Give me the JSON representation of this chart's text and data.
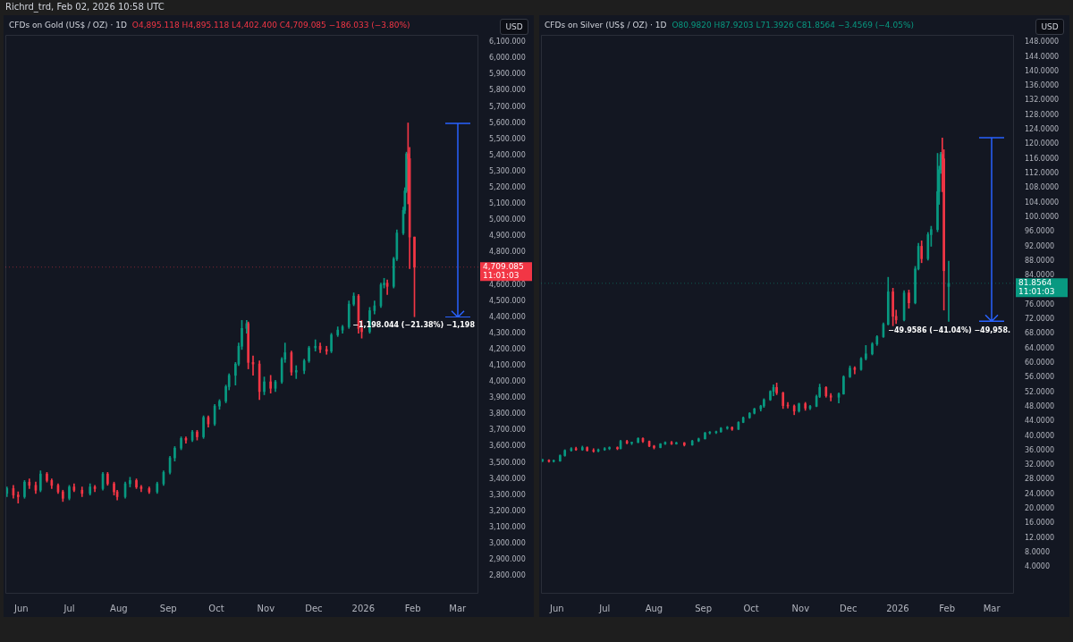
{
  "chart_data": [
    {
      "type": "candlestick",
      "title": "CFDs on Gold (US$ / OZ) · 1D",
      "subtitle": "O4,895.118 H4,895.118 L4,402.400 C4,709.085 −186.033 (−3.80%)",
      "grid": false,
      "x": [
        "2025-05-23",
        "2025-05-27",
        "2025-05-30",
        "2025-06-03",
        "2025-06-06",
        "2025-06-10",
        "2025-06-13",
        "2025-06-17",
        "2025-06-20",
        "2025-06-24",
        "2025-06-27",
        "2025-07-01",
        "2025-07-04",
        "2025-07-09",
        "2025-07-14",
        "2025-07-17",
        "2025-07-22",
        "2025-07-25",
        "2025-07-29",
        "2025-07-31",
        "2025-08-05",
        "2025-08-08",
        "2025-08-12",
        "2025-08-15",
        "2025-08-20",
        "2025-08-25",
        "2025-08-29",
        "2025-09-02",
        "2025-09-05",
        "2025-09-09",
        "2025-09-12",
        "2025-09-16",
        "2025-09-19",
        "2025-09-23",
        "2025-09-26",
        "2025-09-30",
        "2025-10-03",
        "2025-10-07",
        "2025-10-09",
        "2025-10-13",
        "2025-10-15",
        "2025-10-17",
        "2025-10-20",
        "2025-10-21",
        "2025-10-24",
        "2025-10-28",
        "2025-10-31",
        "2025-11-04",
        "2025-11-07",
        "2025-11-11",
        "2025-11-13",
        "2025-11-17",
        "2025-11-20",
        "2025-11-25",
        "2025-11-28",
        "2025-12-02",
        "2025-12-05",
        "2025-12-09",
        "2025-12-12",
        "2025-12-16",
        "2025-12-19",
        "2025-12-23",
        "2025-12-26",
        "2025-12-29",
        "2025-12-31",
        "2026-01-05",
        "2026-01-08",
        "2026-01-12",
        "2026-01-14",
        "2026-01-16",
        "2026-01-20",
        "2026-01-22",
        "2026-01-26",
        "2026-01-27",
        "2026-01-28",
        "2026-01-29",
        "2026-01-30",
        "2026-02-02"
      ],
      "ohlc": [
        [
          3310,
          3350,
          3290,
          3340
        ],
        [
          3340,
          3360,
          3280,
          3300
        ],
        [
          3300,
          3320,
          3250,
          3290
        ],
        [
          3290,
          3390,
          3280,
          3380
        ],
        [
          3380,
          3400,
          3340,
          3360
        ],
        [
          3360,
          3380,
          3310,
          3330
        ],
        [
          3330,
          3450,
          3320,
          3430
        ],
        [
          3430,
          3440,
          3380,
          3390
        ],
        [
          3390,
          3400,
          3340,
          3360
        ],
        [
          3360,
          3370,
          3310,
          3320
        ],
        [
          3320,
          3330,
          3260,
          3280
        ],
        [
          3280,
          3360,
          3270,
          3350
        ],
        [
          3350,
          3370,
          3320,
          3330
        ],
        [
          3330,
          3350,
          3290,
          3310
        ],
        [
          3310,
          3370,
          3300,
          3350
        ],
        [
          3350,
          3360,
          3320,
          3340
        ],
        [
          3340,
          3440,
          3330,
          3430
        ],
        [
          3430,
          3440,
          3360,
          3370
        ],
        [
          3370,
          3380,
          3300,
          3320
        ],
        [
          3320,
          3330,
          3270,
          3290
        ],
        [
          3290,
          3380,
          3280,
          3370
        ],
        [
          3370,
          3410,
          3350,
          3390
        ],
        [
          3390,
          3400,
          3340,
          3350
        ],
        [
          3350,
          3360,
          3320,
          3340
        ],
        [
          3340,
          3350,
          3310,
          3320
        ],
        [
          3320,
          3380,
          3310,
          3370
        ],
        [
          3370,
          3450,
          3360,
          3440
        ],
        [
          3440,
          3540,
          3430,
          3530
        ],
        [
          3530,
          3600,
          3510,
          3590
        ],
        [
          3590,
          3660,
          3580,
          3650
        ],
        [
          3650,
          3660,
          3620,
          3640
        ],
        [
          3640,
          3700,
          3630,
          3690
        ],
        [
          3690,
          3700,
          3640,
          3660
        ],
        [
          3660,
          3790,
          3650,
          3780
        ],
        [
          3780,
          3790,
          3720,
          3740
        ],
        [
          3740,
          3860,
          3730,
          3850
        ],
        [
          3850,
          3890,
          3830,
          3880
        ],
        [
          3880,
          3980,
          3870,
          3970
        ],
        [
          3970,
          4050,
          3950,
          4040
        ],
        [
          4040,
          4120,
          3980,
          4110
        ],
        [
          4110,
          4240,
          4100,
          4220
        ],
        [
          4220,
          4380,
          4200,
          4330
        ],
        [
          4330,
          4380,
          4300,
          4360
        ],
        [
          4360,
          4370,
          4080,
          4120
        ],
        [
          4120,
          4160,
          4040,
          4110
        ],
        [
          4110,
          4130,
          3890,
          3940
        ],
        [
          3940,
          4030,
          3920,
          4000
        ],
        [
          4000,
          4040,
          3930,
          3960
        ],
        [
          3960,
          4010,
          3940,
          4000
        ],
        [
          4000,
          4150,
          3990,
          4140
        ],
        [
          4140,
          4240,
          4120,
          4180
        ],
        [
          4180,
          4190,
          4040,
          4060
        ],
        [
          4060,
          4100,
          4020,
          4070
        ],
        [
          4070,
          4140,
          4050,
          4130
        ],
        [
          4130,
          4220,
          4120,
          4210
        ],
        [
          4210,
          4260,
          4190,
          4220
        ],
        [
          4220,
          4240,
          4180,
          4200
        ],
        [
          4200,
          4220,
          4170,
          4190
        ],
        [
          4190,
          4300,
          4180,
          4290
        ],
        [
          4290,
          4340,
          4280,
          4320
        ],
        [
          4320,
          4350,
          4300,
          4340
        ],
        [
          4340,
          4500,
          4330,
          4480
        ],
        [
          4480,
          4550,
          4470,
          4530
        ],
        [
          4530,
          4540,
          4300,
          4330
        ],
        [
          4330,
          4380,
          4270,
          4310
        ],
        [
          4310,
          4460,
          4300,
          4440
        ],
        [
          4440,
          4500,
          4420,
          4470
        ],
        [
          4470,
          4610,
          4460,
          4600
        ],
        [
          4600,
          4640,
          4580,
          4610
        ],
        [
          4610,
          4630,
          4540,
          4590
        ],
        [
          4590,
          4770,
          4580,
          4760
        ],
        [
          4760,
          4940,
          4750,
          4920
        ],
        [
          4920,
          5080,
          4910,
          5060
        ],
        [
          5060,
          5200,
          5040,
          5180
        ],
        [
          5180,
          5420,
          5170,
          5410
        ],
        [
          5410,
          5600.444,
          5100,
          5380
        ],
        [
          5380,
          5450,
          4700,
          4895.118
        ],
        [
          4895.118,
          4895.118,
          4402.4,
          4709.085
        ]
      ],
      "colors": [
        "#089981",
        "#f23645",
        "#f23645",
        "#089981",
        "#f23645",
        "#f23645",
        "#089981",
        "#f23645",
        "#f23645",
        "#f23645",
        "#f23645",
        "#089981",
        "#f23645",
        "#f23645",
        "#089981",
        "#f23645",
        "#089981",
        "#f23645",
        "#f23645",
        "#f23645",
        "#089981",
        "#089981",
        "#f23645",
        "#f23645",
        "#f23645",
        "#089981",
        "#089981",
        "#089981",
        "#089981",
        "#089981",
        "#f23645",
        "#089981",
        "#f23645",
        "#089981",
        "#f23645",
        "#089981",
        "#089981",
        "#089981",
        "#089981",
        "#089981",
        "#089981",
        "#089981",
        "#089981",
        "#f23645",
        "#f23645",
        "#f23645",
        "#089981",
        "#f23645",
        "#089981",
        "#089981",
        "#089981",
        "#f23645",
        "#089981",
        "#089981",
        "#089981",
        "#089981",
        "#f23645",
        "#f23645",
        "#089981",
        "#089981",
        "#089981",
        "#089981",
        "#089981",
        "#f23645",
        "#f23645",
        "#089981",
        "#089981",
        "#089981",
        "#089981",
        "#f23645",
        "#089981",
        "#089981",
        "#089981",
        "#089981",
        "#089981",
        "#f23645",
        "#f23645",
        "#f23645"
      ],
      "xlim": [
        "2025-05-22",
        "2026-03-14"
      ],
      "xticks": [
        {
          "value": "2025-06-01",
          "label": "Jun"
        },
        {
          "value": "2025-07-01",
          "label": "Jul"
        },
        {
          "value": "2025-08-01",
          "label": "Aug"
        },
        {
          "value": "2025-09-01",
          "label": "Sep"
        },
        {
          "value": "2025-10-01",
          "label": "Oct"
        },
        {
          "value": "2025-11-01",
          "label": "Nov"
        },
        {
          "value": "2025-12-01",
          "label": "Dec"
        },
        {
          "value": "2026-01-01",
          "label": "2026"
        },
        {
          "value": "2026-02-01",
          "label": "Feb"
        },
        {
          "value": "2026-03-01",
          "label": "Mar"
        }
      ],
      "ylim": [
        2690,
        6145
      ],
      "yticks": [
        {
          "value": 2800,
          "label": "2,800.000"
        },
        {
          "value": 2900,
          "label": "2,900.000"
        },
        {
          "value": 3000,
          "label": "3,000.000"
        },
        {
          "value": 3100,
          "label": "3,100.000"
        },
        {
          "value": 3200,
          "label": "3,200.000"
        },
        {
          "value": 3300,
          "label": "3,300.000"
        },
        {
          "value": 3400,
          "label": "3,400.000"
        },
        {
          "value": 3500,
          "label": "3,500.000"
        },
        {
          "value": 3600,
          "label": "3,600.000"
        },
        {
          "value": 3700,
          "label": "3,700.000"
        },
        {
          "value": 3800,
          "label": "3,800.000"
        },
        {
          "value": 3900,
          "label": "3,900.000"
        },
        {
          "value": 4000,
          "label": "4,000.000"
        },
        {
          "value": 4100,
          "label": "4,100.000"
        },
        {
          "value": 4200,
          "label": "4,200.000"
        },
        {
          "value": 4300,
          "label": "4,300.000"
        },
        {
          "value": 4400,
          "label": "4,400.000"
        },
        {
          "value": 4500,
          "label": "4,500.000"
        },
        {
          "value": 4600,
          "label": "4,600.000"
        },
        {
          "value": 4800,
          "label": "4,800.000"
        },
        {
          "value": 4900,
          "label": "4,900.000"
        },
        {
          "value": 5000,
          "label": "5,000.000"
        },
        {
          "value": 5100,
          "label": "5,100.000"
        },
        {
          "value": 5200,
          "label": "5,200.000"
        },
        {
          "value": 5300,
          "label": "5,300.000"
        },
        {
          "value": 5400,
          "label": "5,400.000"
        },
        {
          "value": 5500,
          "label": "5,500.000"
        },
        {
          "value": 5600,
          "label": "5,600.000"
        },
        {
          "value": 5700,
          "label": "5,700.000"
        },
        {
          "value": 5800,
          "label": "5,800.000"
        },
        {
          "value": 5900,
          "label": "5,900.000"
        },
        {
          "value": 6000,
          "label": "6,000.000"
        },
        {
          "value": 6100,
          "label": "6,100.000"
        }
      ],
      "ref_lines": [
        {
          "axis": "y",
          "value": 4709.085,
          "label": "4,709.085",
          "color": "#f23645"
        }
      ],
      "annotations": [
        "Richrd_trd, Feb 02, 2026 10:58 UTC",
        "USD",
        "11:01:03",
        "−1,198.044 (−21.38%) −1,198"
      ]
    },
    {
      "type": "candlestick",
      "title": "CFDs on Silver (US$ / OZ) · 1D",
      "subtitle": "O80.9820 H87.9203 L71.3926 C81.8564 −3.4569 (−4.05%)",
      "grid": false,
      "x": [
        "2025-05-23",
        "2025-05-27",
        "2025-05-30",
        "2025-06-03",
        "2025-06-06",
        "2025-06-10",
        "2025-06-13",
        "2025-06-17",
        "2025-06-20",
        "2025-06-24",
        "2025-06-27",
        "2025-07-01",
        "2025-07-04",
        "2025-07-09",
        "2025-07-11",
        "2025-07-15",
        "2025-07-18",
        "2025-07-22",
        "2025-07-25",
        "2025-07-29",
        "2025-08-01",
        "2025-08-05",
        "2025-08-08",
        "2025-08-12",
        "2025-08-15",
        "2025-08-20",
        "2025-08-25",
        "2025-08-29",
        "2025-09-02",
        "2025-09-05",
        "2025-09-09",
        "2025-09-12",
        "2025-09-16",
        "2025-09-19",
        "2025-09-23",
        "2025-09-26",
        "2025-09-30",
        "2025-10-03",
        "2025-10-07",
        "2025-10-09",
        "2025-10-13",
        "2025-10-15",
        "2025-10-17",
        "2025-10-21",
        "2025-10-24",
        "2025-10-28",
        "2025-10-31",
        "2025-11-04",
        "2025-11-07",
        "2025-11-11",
        "2025-11-13",
        "2025-11-17",
        "2025-11-20",
        "2025-11-25",
        "2025-11-28",
        "2025-12-02",
        "2025-12-05",
        "2025-12-09",
        "2025-12-12",
        "2025-12-16",
        "2025-12-19",
        "2025-12-23",
        "2025-12-26",
        "2025-12-29",
        "2025-12-31",
        "2026-01-05",
        "2026-01-08",
        "2026-01-12",
        "2026-01-14",
        "2026-01-16",
        "2026-01-20",
        "2026-01-22",
        "2026-01-26",
        "2026-01-27",
        "2026-01-28",
        "2026-01-29",
        "2026-01-30",
        "2026-02-02"
      ],
      "ohlc": [
        [
          33.2,
          33.6,
          32.9,
          33.3
        ],
        [
          33.3,
          33.5,
          32.8,
          33.0
        ],
        [
          33.0,
          33.4,
          32.8,
          33.1
        ],
        [
          33.1,
          34.8,
          33.0,
          34.6
        ],
        [
          34.6,
          36.2,
          34.4,
          36.0
        ],
        [
          36.0,
          36.8,
          35.8,
          36.5
        ],
        [
          36.5,
          36.9,
          36.0,
          36.2
        ],
        [
          36.2,
          37.2,
          36.0,
          36.8
        ],
        [
          36.8,
          37.0,
          35.8,
          36.0
        ],
        [
          36.0,
          36.5,
          35.5,
          35.8
        ],
        [
          35.8,
          36.4,
          35.6,
          36.2
        ],
        [
          36.2,
          36.8,
          36.0,
          36.5
        ],
        [
          36.5,
          37.0,
          36.2,
          36.8
        ],
        [
          36.8,
          37.0,
          36.2,
          36.5
        ],
        [
          36.5,
          38.8,
          36.4,
          38.5
        ],
        [
          38.5,
          38.8,
          37.8,
          38.0
        ],
        [
          38.0,
          38.3,
          37.6,
          38.2
        ],
        [
          38.2,
          39.5,
          38.1,
          39.3
        ],
        [
          39.3,
          39.5,
          38.2,
          38.5
        ],
        [
          38.5,
          38.6,
          37.0,
          37.2
        ],
        [
          37.2,
          37.4,
          36.4,
          36.8
        ],
        [
          36.8,
          37.9,
          36.7,
          37.8
        ],
        [
          37.8,
          38.4,
          37.6,
          38.2
        ],
        [
          38.2,
          38.5,
          37.6,
          37.8
        ],
        [
          37.8,
          38.3,
          37.7,
          38.1
        ],
        [
          38.1,
          38.2,
          37.2,
          37.5
        ],
        [
          37.5,
          38.8,
          37.4,
          38.6
        ],
        [
          38.6,
          39.4,
          38.4,
          39.2
        ],
        [
          39.2,
          41.0,
          39.1,
          40.8
        ],
        [
          40.8,
          41.2,
          40.5,
          40.9
        ],
        [
          40.9,
          41.3,
          40.6,
          41.1
        ],
        [
          41.1,
          42.3,
          41.0,
          42.1
        ],
        [
          42.1,
          42.6,
          41.8,
          42.3
        ],
        [
          42.3,
          42.5,
          41.5,
          41.8
        ],
        [
          41.8,
          43.9,
          41.7,
          43.7
        ],
        [
          43.7,
          45.2,
          43.6,
          45.0
        ],
        [
          45.0,
          46.4,
          44.8,
          46.2
        ],
        [
          46.2,
          47.6,
          46.0,
          47.4
        ],
        [
          47.4,
          48.4,
          46.8,
          48.2
        ],
        [
          48.2,
          50.2,
          47.8,
          49.9
        ],
        [
          49.9,
          52.4,
          49.7,
          52.2
        ],
        [
          52.2,
          54.0,
          51.0,
          53.3
        ],
        [
          53.3,
          54.5,
          51.3,
          51.8
        ],
        [
          51.8,
          52.0,
          47.5,
          48.3
        ],
        [
          48.3,
          49.2,
          47.6,
          48.2
        ],
        [
          48.2,
          48.5,
          45.8,
          46.8
        ],
        [
          46.8,
          49.0,
          46.5,
          48.8
        ],
        [
          48.8,
          49.2,
          47.0,
          47.6
        ],
        [
          47.6,
          48.4,
          47.2,
          48.1
        ],
        [
          48.1,
          51.2,
          48.0,
          50.8
        ],
        [
          50.8,
          54.2,
          50.5,
          53.3
        ],
        [
          53.3,
          53.5,
          50.6,
          51.0
        ],
        [
          51.0,
          51.6,
          49.6,
          50.6
        ],
        [
          50.6,
          51.8,
          49.0,
          51.5
        ],
        [
          51.5,
          56.5,
          51.4,
          56.2
        ],
        [
          56.2,
          59.2,
          56.0,
          58.6
        ],
        [
          58.6,
          59.0,
          57.0,
          58.2
        ],
        [
          58.2,
          61.5,
          58.0,
          61.2
        ],
        [
          61.2,
          64.8,
          60.8,
          62.5
        ],
        [
          62.5,
          65.6,
          62.2,
          65.2
        ],
        [
          65.2,
          67.5,
          64.8,
          67.2
        ],
        [
          67.2,
          71.0,
          67.0,
          70.6
        ],
        [
          70.6,
          83.5,
          70.4,
          79.5
        ],
        [
          79.5,
          80.5,
          70.2,
          72.8
        ],
        [
          72.8,
          74.5,
          70.8,
          71.8
        ],
        [
          71.8,
          79.8,
          71.5,
          79.2
        ],
        [
          79.2,
          80.0,
          75.0,
          76.5
        ],
        [
          76.5,
          86.5,
          76.2,
          85.8
        ],
        [
          85.8,
          92.8,
          85.5,
          92.0
        ],
        [
          92.0,
          93.5,
          87.5,
          88.6
        ],
        [
          88.6,
          95.8,
          88.2,
          95.2
        ],
        [
          95.2,
          97.5,
          92.0,
          96.6
        ],
        [
          96.6,
          117.5,
          96.0,
          107.0
        ],
        [
          107.0,
          114.0,
          103.5,
          113.0
        ],
        [
          113.0,
          117.8,
          112.0,
          117.2
        ],
        [
          117.2,
          121.73,
          107.0,
          116.0
        ],
        [
          116.0,
          118.5,
          74.5,
          85.3133
        ],
        [
          80.982,
          87.9203,
          71.3926,
          81.8564
        ]
      ],
      "colors": [
        "#089981",
        "#f23645",
        "#089981",
        "#089981",
        "#089981",
        "#089981",
        "#f23645",
        "#089981",
        "#f23645",
        "#f23645",
        "#089981",
        "#089981",
        "#089981",
        "#f23645",
        "#089981",
        "#f23645",
        "#089981",
        "#089981",
        "#f23645",
        "#f23645",
        "#f23645",
        "#089981",
        "#089981",
        "#f23645",
        "#089981",
        "#f23645",
        "#089981",
        "#089981",
        "#089981",
        "#089981",
        "#089981",
        "#089981",
        "#089981",
        "#f23645",
        "#089981",
        "#089981",
        "#089981",
        "#089981",
        "#089981",
        "#089981",
        "#089981",
        "#089981",
        "#f23645",
        "#f23645",
        "#f23645",
        "#f23645",
        "#089981",
        "#f23645",
        "#089981",
        "#089981",
        "#089981",
        "#f23645",
        "#f23645",
        "#089981",
        "#089981",
        "#089981",
        "#f23645",
        "#089981",
        "#089981",
        "#089981",
        "#089981",
        "#089981",
        "#089981",
        "#f23645",
        "#f23645",
        "#089981",
        "#f23645",
        "#089981",
        "#089981",
        "#f23645",
        "#089981",
        "#089981",
        "#089981",
        "#089981",
        "#089981",
        "#f23645",
        "#f23645",
        "#089981"
      ],
      "xlim": [
        "2025-05-22",
        "2026-03-15"
      ],
      "xticks": [
        {
          "value": "2025-06-01",
          "label": "Jun"
        },
        {
          "value": "2025-07-01",
          "label": "Jul"
        },
        {
          "value": "2025-08-01",
          "label": "Aug"
        },
        {
          "value": "2025-09-01",
          "label": "Sep"
        },
        {
          "value": "2025-10-01",
          "label": "Oct"
        },
        {
          "value": "2025-11-01",
          "label": "Nov"
        },
        {
          "value": "2025-12-01",
          "label": "Dec"
        },
        {
          "value": "2026-01-01",
          "label": "2026"
        },
        {
          "value": "2026-02-01",
          "label": "Feb"
        },
        {
          "value": "2026-03-01",
          "label": "Mar"
        }
      ],
      "ylim": [
        -3.3,
        150
      ],
      "yticks": [
        {
          "value": 4,
          "label": "4.0000"
        },
        {
          "value": 8,
          "label": "8.0000"
        },
        {
          "value": 12,
          "label": "12.0000"
        },
        {
          "value": 16,
          "label": "16.0000"
        },
        {
          "value": 20,
          "label": "20.0000"
        },
        {
          "value": 24,
          "label": "24.0000"
        },
        {
          "value": 28,
          "label": "28.0000"
        },
        {
          "value": 32,
          "label": "32.0000"
        },
        {
          "value": 36,
          "label": "36.0000"
        },
        {
          "value": 40,
          "label": "40.0000"
        },
        {
          "value": 44,
          "label": "44.0000"
        },
        {
          "value": 48,
          "label": "48.0000"
        },
        {
          "value": 52,
          "label": "52.0000"
        },
        {
          "value": 56,
          "label": "56.0000"
        },
        {
          "value": 60,
          "label": "60.0000"
        },
        {
          "value": 64,
          "label": "64.0000"
        },
        {
          "value": 68,
          "label": "68.0000"
        },
        {
          "value": 72,
          "label": "72.0000"
        },
        {
          "value": 76,
          "label": "76.0000"
        },
        {
          "value": 84,
          "label": "84.0000"
        },
        {
          "value": 88,
          "label": "88.0000"
        },
        {
          "value": 92,
          "label": "92.0000"
        },
        {
          "value": 96,
          "label": "96.0000"
        },
        {
          "value": 100,
          "label": "100.0000"
        },
        {
          "value": 104,
          "label": "104.0000"
        },
        {
          "value": 108,
          "label": "108.0000"
        },
        {
          "value": 112,
          "label": "112.0000"
        },
        {
          "value": 116,
          "label": "116.0000"
        },
        {
          "value": 120,
          "label": "120.0000"
        },
        {
          "value": 124,
          "label": "124.0000"
        },
        {
          "value": 128,
          "label": "128.0000"
        },
        {
          "value": 132,
          "label": "132.0000"
        },
        {
          "value": 136,
          "label": "136.0000"
        },
        {
          "value": 140,
          "label": "140.0000"
        },
        {
          "value": 144,
          "label": "144.0000"
        },
        {
          "value": 148,
          "label": "148.0000"
        }
      ],
      "ref_lines": [
        {
          "axis": "y",
          "value": 81.8564,
          "label": "81.8564",
          "color": "#089981"
        }
      ],
      "annotations": [
        "USD",
        "11:01:03",
        "−49.9586 (−41.04%) −49,958."
      ]
    }
  ]
}
